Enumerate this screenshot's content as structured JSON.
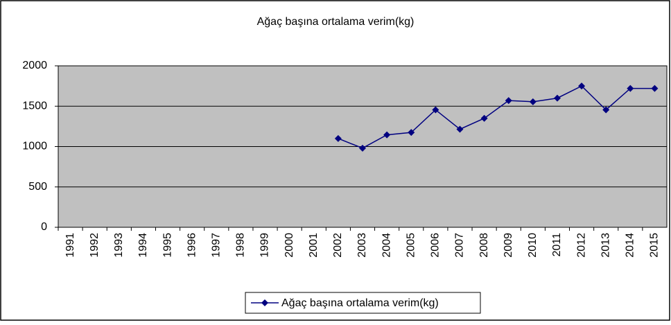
{
  "chart_data": {
    "type": "line",
    "title": "Ağaç başına ortalama verim(kg)",
    "categories": [
      "1991",
      "1992",
      "1993",
      "1994",
      "1995",
      "1996",
      "1997",
      "1998",
      "1999",
      "2000",
      "2001",
      "2002",
      "2003",
      "2004",
      "2005",
      "2006",
      "2007",
      "2008",
      "2009",
      "2010",
      "2011",
      "2012",
      "2013",
      "2014",
      "2015"
    ],
    "series": [
      {
        "name": "Ağaç başına ortalama verim(kg)",
        "color": "#000080",
        "values": [
          null,
          null,
          null,
          null,
          null,
          null,
          null,
          null,
          null,
          null,
          null,
          1100,
          980,
          1145,
          1175,
          1455,
          1215,
          1350,
          1570,
          1555,
          1600,
          1750,
          1455,
          1720,
          1720
        ]
      }
    ],
    "ylim": [
      0,
      2000
    ],
    "yticks": [
      0,
      500,
      1000,
      1500,
      2000
    ],
    "grid": true,
    "legend": "bottom"
  }
}
